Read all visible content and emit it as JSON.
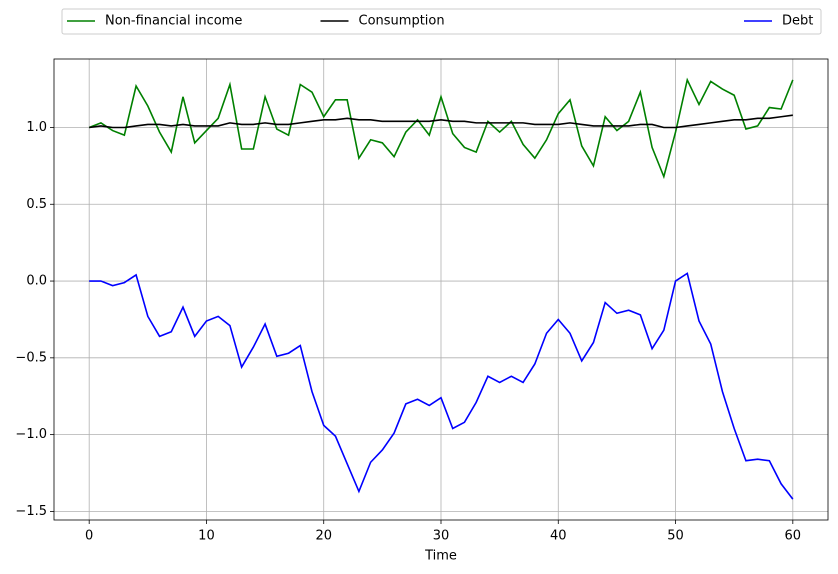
{
  "chart_data": {
    "type": "line",
    "xlabel": "Time",
    "x": [
      0,
      1,
      2,
      3,
      4,
      5,
      6,
      7,
      8,
      9,
      10,
      11,
      12,
      13,
      14,
      15,
      16,
      17,
      18,
      19,
      20,
      21,
      22,
      23,
      24,
      25,
      26,
      27,
      28,
      29,
      30,
      31,
      32,
      33,
      34,
      35,
      36,
      37,
      38,
      39,
      40,
      41,
      42,
      43,
      44,
      45,
      46,
      47,
      48,
      49,
      50,
      51,
      52,
      53,
      54,
      55,
      56,
      57,
      58,
      59,
      60
    ],
    "series": [
      {
        "name": "Non-financial income",
        "color": "#008000",
        "values": [
          1.0,
          1.03,
          0.98,
          0.95,
          1.27,
          1.14,
          0.97,
          0.84,
          1.2,
          0.9,
          0.98,
          1.06,
          1.28,
          0.86,
          0.86,
          1.2,
          0.99,
          0.95,
          1.28,
          1.23,
          1.07,
          1.18,
          1.18,
          0.8,
          0.92,
          0.9,
          0.81,
          0.97,
          1.05,
          0.95,
          1.2,
          0.96,
          0.87,
          0.84,
          1.04,
          0.97,
          1.04,
          0.89,
          0.8,
          0.92,
          1.09,
          1.18,
          0.88,
          0.75,
          1.07,
          0.98,
          1.04,
          1.23,
          0.87,
          0.68,
          0.97,
          1.31,
          1.15,
          1.3,
          1.25,
          1.21,
          0.99,
          1.01,
          1.13,
          1.12,
          1.31
        ]
      },
      {
        "name": "Consumption",
        "color": "#000000",
        "values": [
          1.0,
          1.01,
          1.0,
          1.0,
          1.01,
          1.02,
          1.02,
          1.01,
          1.02,
          1.01,
          1.01,
          1.01,
          1.03,
          1.02,
          1.02,
          1.03,
          1.02,
          1.02,
          1.03,
          1.04,
          1.05,
          1.05,
          1.06,
          1.05,
          1.05,
          1.04,
          1.04,
          1.04,
          1.04,
          1.04,
          1.05,
          1.04,
          1.04,
          1.03,
          1.03,
          1.03,
          1.03,
          1.03,
          1.02,
          1.02,
          1.02,
          1.03,
          1.02,
          1.01,
          1.01,
          1.01,
          1.01,
          1.02,
          1.02,
          1.0,
          1.0,
          1.01,
          1.02,
          1.03,
          1.04,
          1.05,
          1.05,
          1.06,
          1.06,
          1.07,
          1.08
        ]
      },
      {
        "name": "Debt",
        "color": "#0000ff",
        "values": [
          0.0,
          0.0,
          -0.03,
          -0.01,
          0.04,
          -0.23,
          -0.36,
          -0.33,
          -0.17,
          -0.36,
          -0.26,
          -0.23,
          -0.29,
          -0.56,
          -0.43,
          -0.28,
          -0.49,
          -0.47,
          -0.42,
          -0.72,
          -0.94,
          -1.01,
          -1.19,
          -1.37,
          -1.18,
          -1.1,
          -0.99,
          -0.8,
          -0.77,
          -0.81,
          -0.76,
          -0.96,
          -0.92,
          -0.79,
          -0.62,
          -0.66,
          -0.62,
          -0.66,
          -0.54,
          -0.34,
          -0.25,
          -0.34,
          -0.52,
          -0.4,
          -0.14,
          -0.21,
          -0.19,
          -0.22,
          -0.44,
          -0.32,
          0.0,
          0.05,
          -0.26,
          -0.41,
          -0.72,
          -0.96,
          -1.17,
          -1.16,
          -1.17,
          -1.32,
          -1.42
        ]
      }
    ],
    "xlim": [
      -3,
      63
    ],
    "ylim": [
      -1.556,
      1.446
    ],
    "xticks": [
      0,
      10,
      20,
      30,
      40,
      50,
      60
    ],
    "yticks": [
      {
        "value": -1.5,
        "label": "−1.5"
      },
      {
        "value": -1.0,
        "label": "−1.0"
      },
      {
        "value": -0.5,
        "label": "−0.5"
      },
      {
        "value": 0.0,
        "label": "0.0"
      },
      {
        "value": 0.5,
        "label": "0.5"
      },
      {
        "value": 1.0,
        "label": "1.0"
      }
    ],
    "grid": true,
    "legend": "above"
  }
}
